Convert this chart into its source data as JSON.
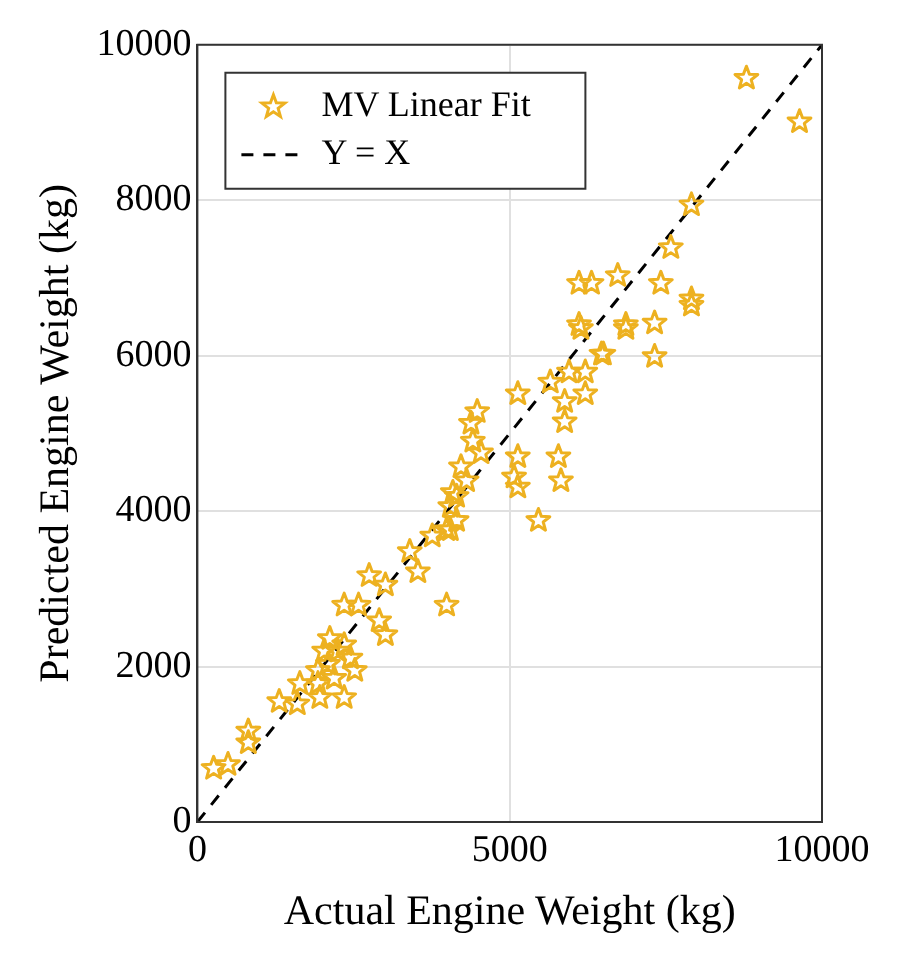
{
  "chart_data": {
    "type": "scatter",
    "xlabel": "Actual Engine Weight (kg)",
    "ylabel": "Predicted Engine Weight (kg)",
    "xlim": [
      0,
      10000
    ],
    "xticks": [
      0,
      5000,
      10000
    ],
    "ylim": [
      0,
      10000
    ],
    "yticks": [
      0,
      2000,
      4000,
      6000,
      8000,
      10000
    ],
    "grid": true,
    "legend": "top left",
    "series": [
      {
        "name": "MV Linear Fit",
        "type": "scatter",
        "color": "#edb120",
        "marker": "star",
        "x": [
          260,
          490,
          815,
          815,
          1310,
          1600,
          1640,
          1930,
          1960,
          2350,
          2090,
          2250,
          2450,
          2350,
          2350,
          2580,
          2750,
          3010,
          2910,
          3010,
          3400,
          3530,
          3760,
          3990,
          4050,
          4150,
          2120,
          2030,
          2190,
          1930,
          2520,
          4480,
          4380,
          4410,
          4220,
          4090,
          4050,
          4310,
          4540,
          4150,
          3990,
          5130,
          5130,
          5070,
          5130,
          5460,
          5650,
          5880,
          5880,
          5780,
          5820,
          5950,
          6210,
          6210,
          6470,
          6140,
          6860,
          7320,
          7320,
          8790,
          9640,
          7910,
          7580,
          7420,
          7910,
          7910,
          6730,
          6110,
          6310,
          6860,
          6110,
          6500
        ],
        "values": [
          690,
          740,
          1170,
          1020,
          1550,
          1520,
          1780,
          1780,
          1600,
          1600,
          2030,
          2200,
          2110,
          2280,
          2790,
          2790,
          3170,
          3050,
          2590,
          2410,
          3480,
          3220,
          3680,
          2790,
          3760,
          4190,
          2360,
          2200,
          1850,
          1950,
          1950,
          5280,
          5130,
          4900,
          4570,
          4240,
          4060,
          4390,
          4750,
          3880,
          3760,
          5510,
          4700,
          4440,
          4310,
          3880,
          5660,
          5410,
          5150,
          4700,
          4390,
          5790,
          5790,
          5510,
          6020,
          6350,
          6350,
          6420,
          5990,
          9570,
          9010,
          7940,
          7390,
          6930,
          6730,
          6650,
          7030,
          6930,
          6930,
          6400,
          6400,
          6020
        ]
      },
      {
        "name": "Y = X",
        "type": "line",
        "color": "#000000",
        "line_style": "dashed",
        "marker": "none",
        "x": [
          0,
          10000
        ],
        "values": [
          0,
          10000
        ]
      }
    ]
  }
}
